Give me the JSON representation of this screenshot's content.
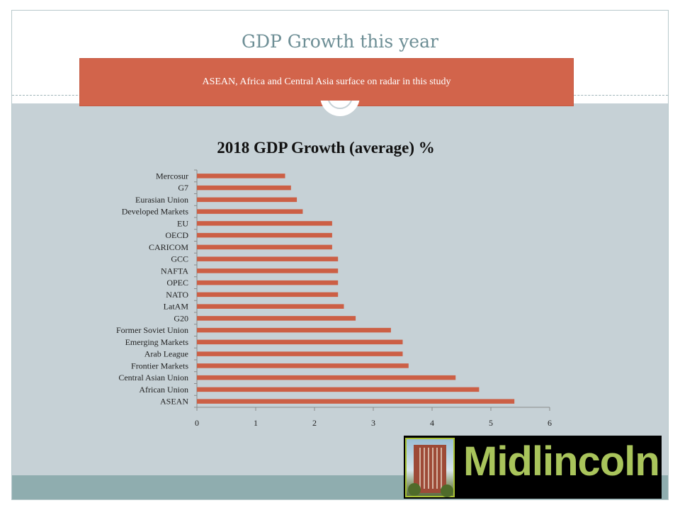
{
  "slide": {
    "title": "GDP Growth this year",
    "banner_text": "ASEAN, Africa and Central Asia  surface on radar in this study",
    "logo_text": "Midlincoln"
  },
  "colors": {
    "bar": "#cc5f45",
    "banner": "#d2644b",
    "background": "#c6d1d6",
    "title": "#6d8e95",
    "logo_text": "#a9c45b"
  },
  "chart_data": {
    "type": "bar",
    "orientation": "horizontal",
    "title": "2018 GDP Growth (average) %",
    "categories": [
      "Mercosur",
      "G7",
      "Eurasian Union",
      "Developed Markets",
      "EU",
      "OECD",
      "CARICOM",
      "GCC",
      "NAFTA",
      "OPEC",
      "NATO",
      "LatAM",
      "G20",
      "Former Soviet Union",
      "Emerging Markets",
      "Arab League",
      "Frontier Markets",
      "Central Asian Union",
      "African Union",
      "ASEAN"
    ],
    "values": [
      1.5,
      1.6,
      1.7,
      1.8,
      2.3,
      2.3,
      2.3,
      2.4,
      2.4,
      2.4,
      2.4,
      2.5,
      2.7,
      3.3,
      3.5,
      3.5,
      3.6,
      4.4,
      4.8,
      5.4
    ],
    "xlim": [
      0,
      6
    ],
    "xticks": [
      "0",
      "1",
      "2",
      "3",
      "4",
      "5",
      "6"
    ],
    "xlabel": "",
    "ylabel": "",
    "grid": false,
    "legend": "none"
  }
}
